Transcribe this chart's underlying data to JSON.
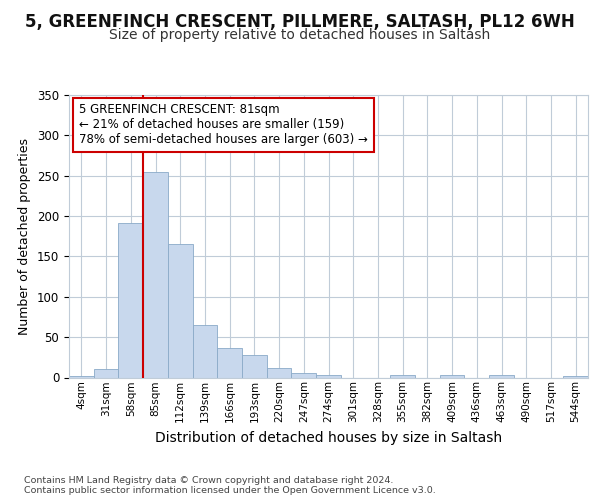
{
  "title1": "5, GREENFINCH CRESCENT, PILLMERE, SALTASH, PL12 6WH",
  "title2": "Size of property relative to detached houses in Saltash",
  "xlabel": "Distribution of detached houses by size in Saltash",
  "ylabel": "Number of detached properties",
  "bin_labels": [
    "4sqm",
    "31sqm",
    "58sqm",
    "85sqm",
    "112sqm",
    "139sqm",
    "166sqm",
    "193sqm",
    "220sqm",
    "247sqm",
    "274sqm",
    "301sqm",
    "328sqm",
    "355sqm",
    "382sqm",
    "409sqm",
    "436sqm",
    "463sqm",
    "490sqm",
    "517sqm",
    "544sqm"
  ],
  "bar_heights": [
    2,
    10,
    192,
    255,
    166,
    65,
    37,
    28,
    12,
    5,
    3,
    0,
    0,
    3,
    0,
    3,
    0,
    3,
    0,
    0,
    2
  ],
  "bar_color": "#c8d8ed",
  "bar_edge_color": "#8aaac8",
  "vline_x_idx": 3,
  "vline_color": "#cc0000",
  "annotation_text": "5 GREENFINCH CRESCENT: 81sqm\n← 21% of detached houses are smaller (159)\n78% of semi-detached houses are larger (603) →",
  "annotation_box_color": "#ffffff",
  "annotation_box_edge_color": "#cc0000",
  "ylim": [
    0,
    350
  ],
  "yticks": [
    0,
    50,
    100,
    150,
    200,
    250,
    300,
    350
  ],
  "footer_text": "Contains HM Land Registry data © Crown copyright and database right 2024.\nContains public sector information licensed under the Open Government Licence v3.0.",
  "bg_color": "#ffffff",
  "plot_bg_color": "#ffffff",
  "grid_color": "#c0ccd8",
  "title1_fontsize": 12,
  "title2_fontsize": 10,
  "ylabel_fontsize": 9,
  "xlabel_fontsize": 10
}
